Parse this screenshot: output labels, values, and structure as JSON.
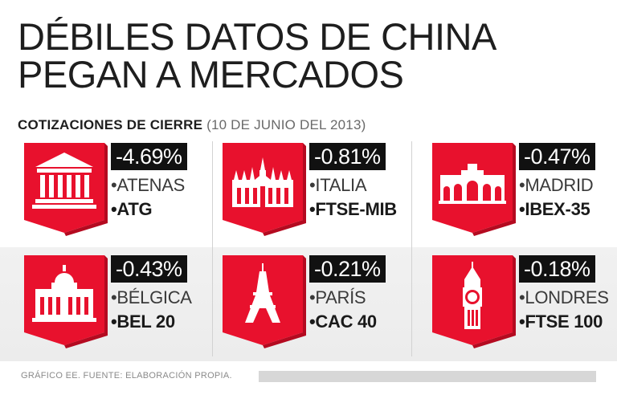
{
  "title_line1": "DÉBILES DATOS DE CHINA",
  "title_line2": "PEGAN A MERCADOS",
  "subtitle": "COTIZACIONES DE CIERRE",
  "subtitle_date": "(10 DE JUNIO DEL 2013)",
  "footer": "GRÁFICO EE. FUENTE: ELABORACIÓN PROPIA.",
  "colors": {
    "shield": "#e8112d",
    "shield_dark": "#b40a20",
    "badge": "#111111"
  },
  "chart_data": {
    "type": "table",
    "title": "DÉBILES DATOS DE CHINA PEGAN A MERCADOS",
    "subtitle": "COTIZACIONES DE CIERRE (10 DE JUNIO DEL 2013)",
    "columns": [
      "change",
      "city",
      "index"
    ],
    "items": [
      {
        "change": "-4.69%",
        "change_value": -4.69,
        "city": "•ATENAS",
        "index": "•ATG",
        "icon": "parthenon-icon"
      },
      {
        "change": "-0.81%",
        "change_value": -0.81,
        "city": "•ITALIA",
        "index": "•FTSE-MIB",
        "icon": "milan-cathedral-icon"
      },
      {
        "change": "-0.47%",
        "change_value": -0.47,
        "city": "•MADRID",
        "index": "•IBEX-35",
        "icon": "puerta-de-alcala-icon"
      },
      {
        "change": "-0.43%",
        "change_value": -0.43,
        "city": "•BÉLGICA",
        "index": "•BEL 20",
        "icon": "palace-of-justice-icon"
      },
      {
        "change": "-0.21%",
        "change_value": -0.21,
        "city": "•PARÍS",
        "index": "•CAC 40",
        "icon": "eiffel-tower-icon"
      },
      {
        "change": "-0.18%",
        "change_value": -0.18,
        "city": "•LONDRES",
        "index": "•FTSE 100",
        "icon": "big-ben-icon"
      }
    ]
  }
}
